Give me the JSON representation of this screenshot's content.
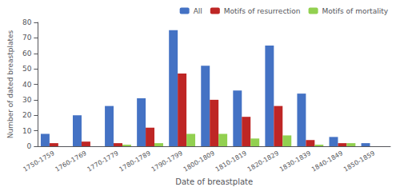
{
  "chart_data": {
    "type": "bar",
    "categories": [
      "1750-1759",
      "1760-1769",
      "1770-1779",
      "1780-1789",
      "1790-1799",
      "1800-1809",
      "1810-1819",
      "1820-1829",
      "1830-1839",
      "1840-1849",
      "1850-1859"
    ],
    "series": [
      {
        "name": "All",
        "color": "#4472C4",
        "values": [
          8,
          20,
          26,
          31,
          75,
          52,
          36,
          65,
          34,
          6,
          2
        ]
      },
      {
        "name": "Motifs of resurrection",
        "color": "#BE2625",
        "values": [
          2,
          3,
          2,
          12,
          47,
          30,
          19,
          26,
          4,
          2,
          0
        ]
      },
      {
        "name": "Motifs of mortality",
        "color": "#92D050",
        "values": [
          0,
          0,
          1,
          2,
          8,
          8,
          5,
          7,
          1,
          2,
          0
        ]
      }
    ],
    "xlabel": "Date of breastplate",
    "ylabel": "Number of dated breastplates",
    "ylim": [
      0,
      80
    ],
    "yticks": [
      0,
      10,
      20,
      30,
      40,
      50,
      60,
      70,
      80
    ],
    "legend": "upper right",
    "grid": false
  }
}
